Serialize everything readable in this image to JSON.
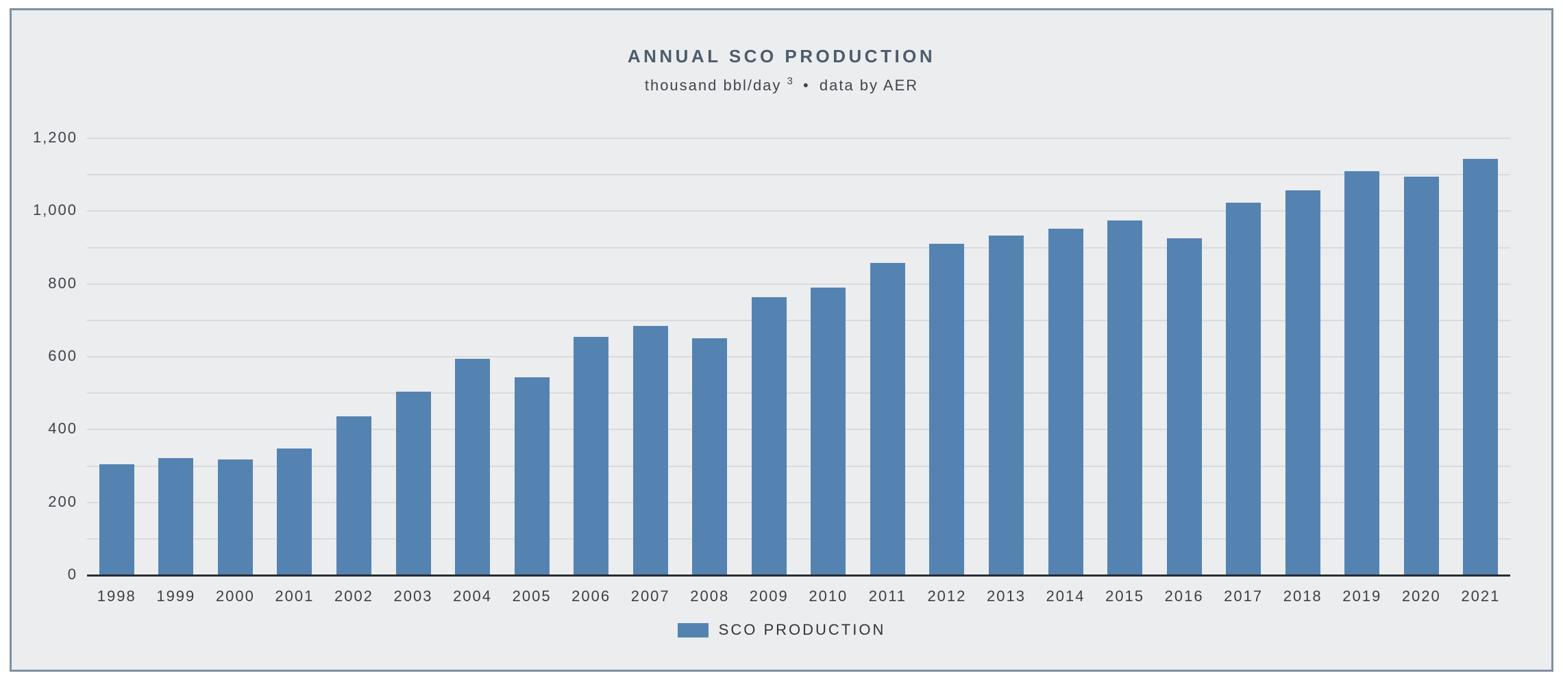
{
  "page": {
    "background": "#ffffff"
  },
  "panel": {
    "background": "#ECEDEF",
    "border_color": "#7E90A2"
  },
  "header": {
    "title": "ANNUAL SCO PRODUCTION",
    "subtitle_prefix": "thousand bbl/day",
    "subtitle_sup": "3",
    "subtitle_suffix": "data by AER",
    "subtitle_separator": "•"
  },
  "legend": {
    "label": "SCO PRODUCTION",
    "swatch_color": "#5483B1"
  },
  "chart_data": {
    "type": "bar",
    "title": "ANNUAL SCO PRODUCTION",
    "subtitle": "thousand bbl/day 3 • data by AER",
    "series_name": "SCO PRODUCTION",
    "categories": [
      "1998",
      "1999",
      "2000",
      "2001",
      "2002",
      "2003",
      "2004",
      "2005",
      "2006",
      "2007",
      "2008",
      "2009",
      "2010",
      "2011",
      "2012",
      "2013",
      "2014",
      "2015",
      "2016",
      "2017",
      "2018",
      "2019",
      "2020",
      "2021"
    ],
    "values": [
      307,
      323,
      319,
      349,
      438,
      506,
      597,
      545,
      657,
      686,
      652,
      765,
      791,
      859,
      912,
      934,
      953,
      977,
      927,
      1025,
      1059,
      1111,
      1096,
      1145
    ],
    "xlabel": "",
    "ylabel": "thousand bbl/day",
    "ylim": [
      0,
      1200
    ],
    "gridline_step": 100,
    "grid": true,
    "legend_position": "bottom",
    "bar_color": "#5483B1",
    "y_ticks": [
      {
        "value": 0,
        "label": "0"
      },
      {
        "value": 200,
        "label": "200"
      },
      {
        "value": 400,
        "label": "400"
      },
      {
        "value": 600,
        "label": "600"
      },
      {
        "value": 800,
        "label": "800"
      },
      {
        "value": 1000,
        "label": "1,000"
      },
      {
        "value": 1200,
        "label": "1,200"
      }
    ]
  }
}
